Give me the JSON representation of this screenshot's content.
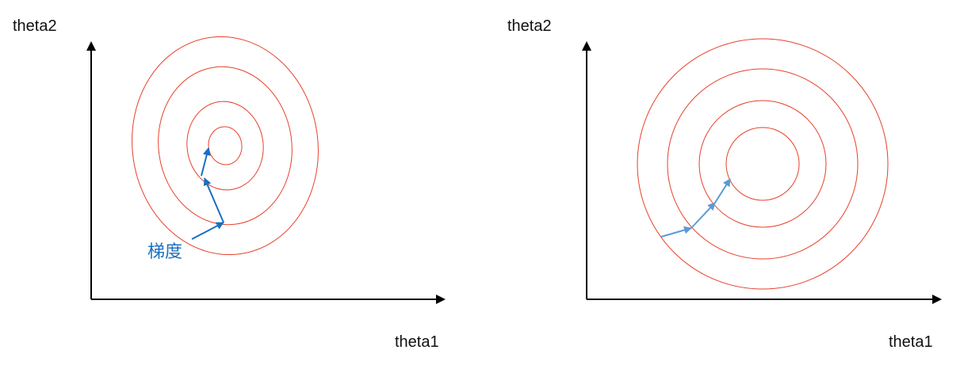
{
  "colors": {
    "axis": "#000000",
    "contour": "#e8402a",
    "arrow_left": "#1a6fbf",
    "arrow_right": "#5b9bd5",
    "text": "#111111"
  },
  "left_plot": {
    "y_axis_label": "theta2",
    "x_axis_label": "theta1",
    "gradient_label": "梯度",
    "contour_shape": "ellipse",
    "contour_count": 4,
    "gradient_steps": 3
  },
  "right_plot": {
    "y_axis_label": "theta2",
    "x_axis_label": "theta1",
    "contour_shape": "circle",
    "contour_count": 4,
    "gradient_steps": 3
  }
}
